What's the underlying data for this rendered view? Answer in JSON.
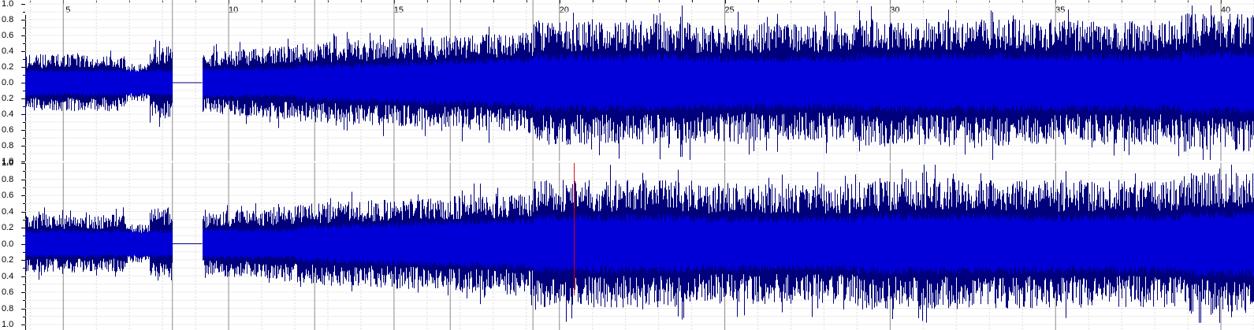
{
  "timeline": {
    "labels": [
      "5",
      "10",
      "15",
      "20",
      "25",
      "30",
      "35",
      "40"
    ],
    "start": 3.85,
    "end": 41.0
  },
  "amplitude_scale": {
    "channels": [
      {
        "labels": [
          "1.0",
          "0.8",
          "0.6",
          "0.4",
          "0.2",
          "0.0",
          "0.2",
          "0.4",
          "0.6",
          "0.8",
          "1.0"
        ]
      },
      {
        "labels": [
          "1.0",
          "0.8",
          "0.6",
          "0.4",
          "0.2",
          "0.0",
          "0.2",
          "0.4",
          "0.6",
          "0.8",
          "1.0"
        ]
      }
    ]
  },
  "colors": {
    "peak": "#00007d",
    "rms": "#0000d6",
    "grid": "#c8c8c8",
    "dark_grid": "#8c8c8c",
    "playhead": "#e00000"
  },
  "selection_point": 20.45,
  "silence_range": [
    8.3,
    9.2
  ]
}
